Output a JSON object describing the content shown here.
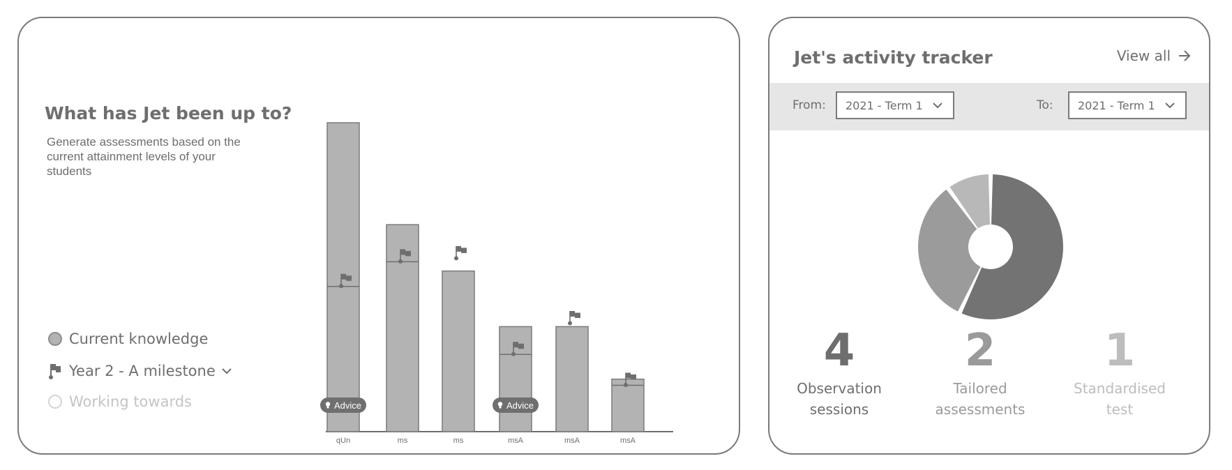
{
  "left_card": {
    "title": "What has Jet been up to?",
    "description": "Generate assessments based on the current attainment levels of your students",
    "legend": {
      "current": "Current knowledge",
      "milestone": "Year 2 - A milestone",
      "working": "Working towards"
    },
    "advice_label": "Advice"
  },
  "chart_data": {
    "type": "bar",
    "categories": [
      "qUn",
      "ms",
      "ms",
      "msA",
      "msA",
      "msA"
    ],
    "bar_tops": [
      100,
      67,
      52,
      34,
      34,
      17
    ],
    "inner_levels": [
      47,
      55,
      null,
      25,
      null,
      15
    ],
    "milestones": [
      47,
      55,
      56,
      25,
      35,
      15
    ],
    "advice_categories": [
      0,
      3
    ],
    "ylim": [
      0,
      100
    ]
  },
  "right_card": {
    "title": "Jet's activity tracker",
    "view_all": "View all",
    "from_label": "From:",
    "from_value": "2021 - Term 1",
    "to_label": "To:",
    "to_value": "2021 - Term 1",
    "donut": [
      {
        "name": "Observation sessions",
        "value": 57,
        "color": "#737373"
      },
      {
        "name": "Tailored assessments",
        "value": 33,
        "color": "#9b9b9b"
      },
      {
        "name": "Standardised test",
        "value": 10,
        "color": "#b8b8b8"
      }
    ],
    "stats": [
      {
        "value": "4",
        "label_line1": "Observation",
        "label_line2": "sessions",
        "color": "#6e6e6e"
      },
      {
        "value": "2",
        "label_line1": "Tailored",
        "label_line2": "assessments",
        "color": "#9a9a9a"
      },
      {
        "value": "1",
        "label_line1": "Standardised",
        "label_line2": "test",
        "color": "#bdbdbd"
      }
    ]
  }
}
